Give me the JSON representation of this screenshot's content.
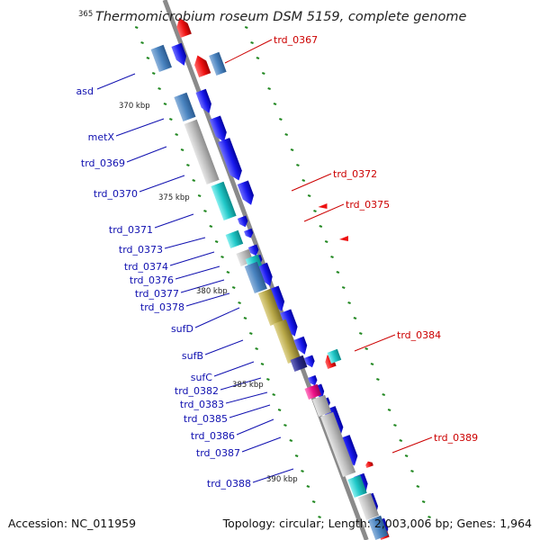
{
  "title": "Thermomicrobium roseum DSM 5159, complete genome",
  "title_kbp": "365",
  "footer": {
    "accession": "Accession: NC_011959",
    "summary": "Topology: circular; Length: 2,003,006 bp; Genes: 1,964"
  },
  "kbp_ticks": [
    "370 kbp",
    "375 kbp",
    "380 kbp",
    "385 kbp",
    "390 kbp"
  ],
  "left_labels": [
    "asd",
    "metX",
    "trd_0369",
    "trd_0370",
    "trd_0371",
    "trd_0373",
    "trd_0374",
    "trd_0376",
    "trd_0377",
    "trd_0378",
    "sufD",
    "sufB",
    "sufC",
    "trd_0382",
    "trd_0383",
    "trd_0385",
    "trd_0386",
    "trd_0387",
    "trd_0388"
  ],
  "right_labels": [
    "trd_0367",
    "trd_0372",
    "trd_0375",
    "trd_0384",
    "trd_0389"
  ],
  "colors": {
    "forward_gene": "#1a1aee",
    "reverse_gene": "#ee1111",
    "backbone": "#8a8a8a",
    "cog_steel": "#4a84c0",
    "cog_gray": "#b8b8b8",
    "cog_cyan": "#20c8c8",
    "cog_olive": "#b8a848",
    "cog_magenta": "#ee1188",
    "cog_navy": "#2a2a8a",
    "blue_label": "#1010b0",
    "red_label": "#cc0000",
    "gc_tick": "#228822"
  }
}
